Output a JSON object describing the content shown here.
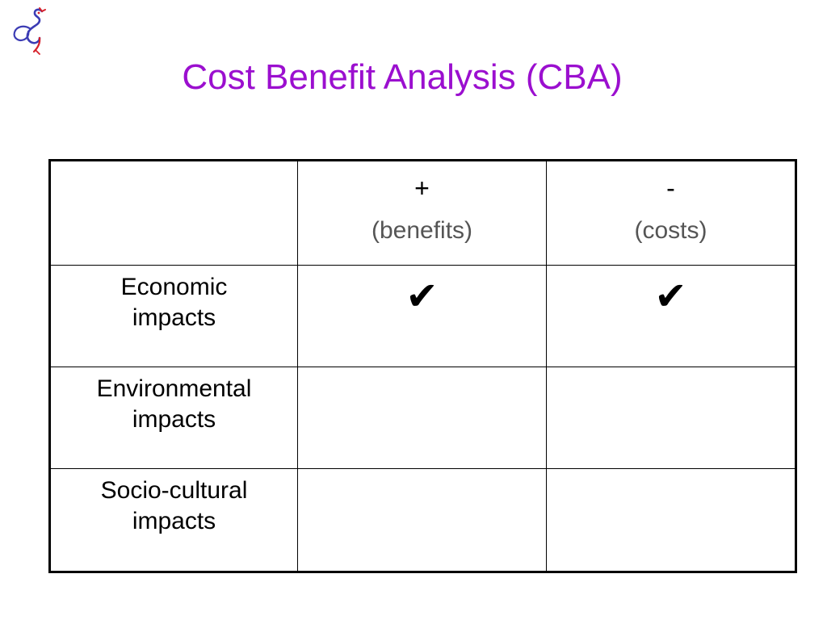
{
  "slide": {
    "title": "Cost Benefit Analysis (CBA)",
    "title_color": "#9b0fcf",
    "logo_icon": "seahorse-logo"
  },
  "table": {
    "header": {
      "corner": "",
      "benefit_sign": "+",
      "benefit_label": "(benefits)",
      "cost_sign": "-",
      "cost_label": "(costs)"
    },
    "rows": [
      {
        "line1": "Economic",
        "line2": "impacts",
        "benefit": "✔",
        "cost": "✔"
      },
      {
        "line1": "Environmental",
        "line2": "impacts",
        "benefit": "",
        "cost": ""
      },
      {
        "line1": "Socio-cultural",
        "line2": "impacts",
        "benefit": "",
        "cost": ""
      }
    ]
  }
}
